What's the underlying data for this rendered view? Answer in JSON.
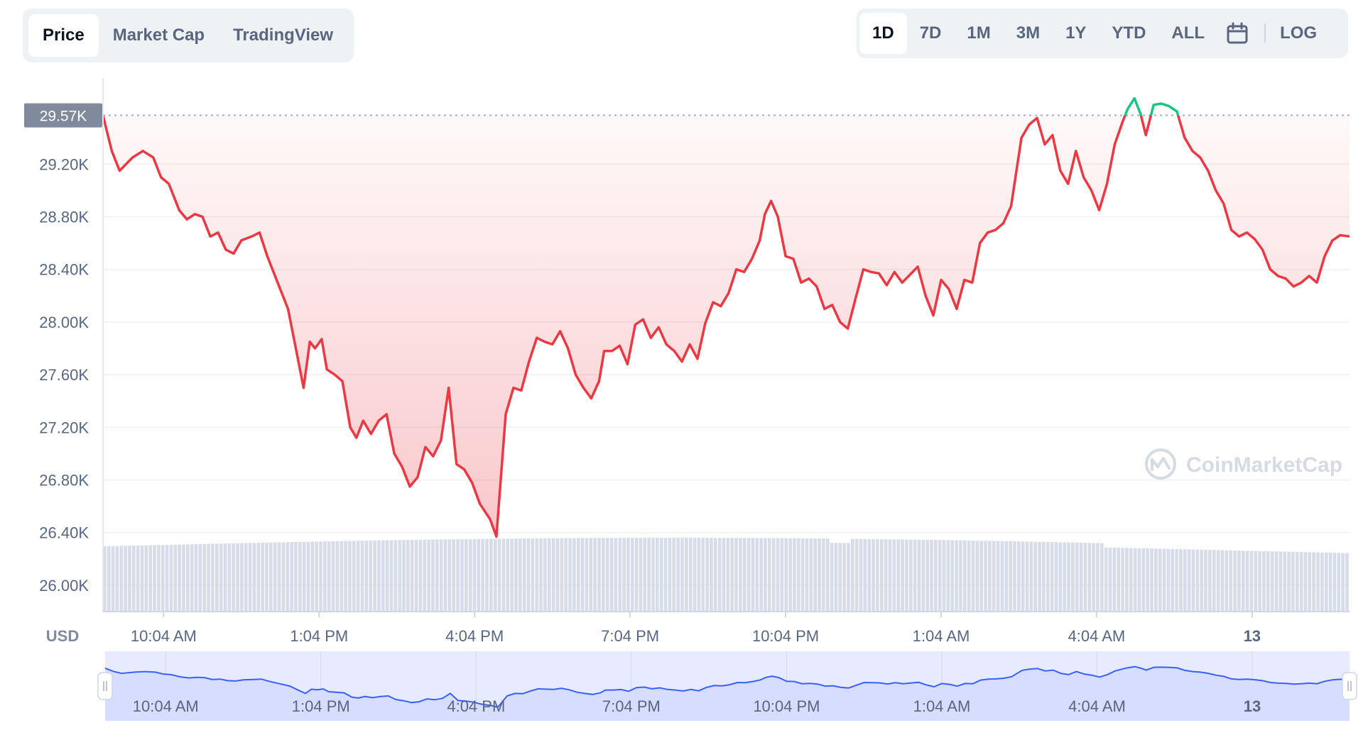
{
  "chart_tabs": [
    {
      "label": "Price",
      "active": true
    },
    {
      "label": "Market Cap",
      "active": false
    },
    {
      "label": "TradingView",
      "active": false
    }
  ],
  "ranges": [
    {
      "label": "1D",
      "active": true
    },
    {
      "label": "7D",
      "active": false
    },
    {
      "label": "1M",
      "active": false
    },
    {
      "label": "3M",
      "active": false
    },
    {
      "label": "1Y",
      "active": false
    },
    {
      "label": "YTD",
      "active": false
    },
    {
      "label": "ALL",
      "active": false
    }
  ],
  "calendar_icon": "calendar-icon",
  "log_label": "LOG",
  "watermark": "CoinMarketCap",
  "currency_label": "USD",
  "colors": {
    "down": "#ea3943",
    "up": "#16c784",
    "volume": "#cfd6e4",
    "navigator": "#3861fb"
  },
  "chart_data": {
    "type": "line",
    "series": [
      {
        "name": "Price"
      }
    ],
    "reference_price": 29570,
    "reference_label": "29.57K",
    "ylim": [
      25800,
      29800
    ],
    "y_ticks": [
      29200,
      28800,
      28400,
      28000,
      27600,
      27200,
      26800,
      26400,
      26000
    ],
    "y_tick_labels": [
      "29.20K",
      "28.80K",
      "28.40K",
      "28.00K",
      "27.60K",
      "27.20K",
      "26.80K",
      "26.40K",
      "26.00K"
    ],
    "x_tick_labels": [
      "10:04 AM",
      "1:04 PM",
      "4:04 PM",
      "7:04 PM",
      "10:04 PM",
      "1:04 AM",
      "4:04 AM",
      "13"
    ],
    "x_tick_hours": [
      1.0,
      4.0,
      7.0,
      10.0,
      13.0,
      16.0,
      19.0,
      22.0
    ],
    "x_range_hours": [
      -0.17,
      23.88
    ],
    "points": [
      [
        -0.17,
        29570
      ],
      [
        0.0,
        29300
      ],
      [
        0.15,
        29150
      ],
      [
        0.4,
        29250
      ],
      [
        0.6,
        29300
      ],
      [
        0.8,
        29250
      ],
      [
        0.95,
        29100
      ],
      [
        1.1,
        29050
      ],
      [
        1.3,
        28850
      ],
      [
        1.45,
        28780
      ],
      [
        1.6,
        28820
      ],
      [
        1.75,
        28800
      ],
      [
        1.9,
        28650
      ],
      [
        2.05,
        28680
      ],
      [
        2.2,
        28550
      ],
      [
        2.35,
        28520
      ],
      [
        2.5,
        28620
      ],
      [
        2.7,
        28650
      ],
      [
        2.85,
        28680
      ],
      [
        3.0,
        28500
      ],
      [
        3.2,
        28300
      ],
      [
        3.4,
        28100
      ],
      [
        3.55,
        27800
      ],
      [
        3.7,
        27500
      ],
      [
        3.82,
        27850
      ],
      [
        3.92,
        27800
      ],
      [
        4.05,
        27870
      ],
      [
        4.15,
        27640
      ],
      [
        4.3,
        27600
      ],
      [
        4.45,
        27550
      ],
      [
        4.6,
        27200
      ],
      [
        4.72,
        27120
      ],
      [
        4.85,
        27250
      ],
      [
        5.0,
        27150
      ],
      [
        5.15,
        27250
      ],
      [
        5.3,
        27300
      ],
      [
        5.45,
        27000
      ],
      [
        5.6,
        26900
      ],
      [
        5.75,
        26750
      ],
      [
        5.9,
        26820
      ],
      [
        6.05,
        27050
      ],
      [
        6.2,
        26980
      ],
      [
        6.35,
        27100
      ],
      [
        6.5,
        27500
      ],
      [
        6.65,
        26920
      ],
      [
        6.8,
        26880
      ],
      [
        6.95,
        26780
      ],
      [
        7.1,
        26620
      ],
      [
        7.3,
        26500
      ],
      [
        7.42,
        26370
      ],
      [
        7.6,
        27300
      ],
      [
        7.75,
        27500
      ],
      [
        7.9,
        27480
      ],
      [
        8.05,
        27700
      ],
      [
        8.2,
        27880
      ],
      [
        8.35,
        27850
      ],
      [
        8.5,
        27830
      ],
      [
        8.65,
        27930
      ],
      [
        8.8,
        27800
      ],
      [
        8.95,
        27600
      ],
      [
        9.1,
        27500
      ],
      [
        9.25,
        27420
      ],
      [
        9.4,
        27550
      ],
      [
        9.5,
        27780
      ],
      [
        9.65,
        27780
      ],
      [
        9.8,
        27820
      ],
      [
        9.95,
        27680
      ],
      [
        10.1,
        27980
      ],
      [
        10.25,
        28020
      ],
      [
        10.4,
        27880
      ],
      [
        10.55,
        27960
      ],
      [
        10.7,
        27830
      ],
      [
        10.85,
        27780
      ],
      [
        11.0,
        27700
      ],
      [
        11.15,
        27830
      ],
      [
        11.3,
        27720
      ],
      [
        11.45,
        27990
      ],
      [
        11.6,
        28150
      ],
      [
        11.75,
        28120
      ],
      [
        11.9,
        28220
      ],
      [
        12.05,
        28400
      ],
      [
        12.2,
        28380
      ],
      [
        12.35,
        28480
      ],
      [
        12.5,
        28620
      ],
      [
        12.6,
        28820
      ],
      [
        12.72,
        28920
      ],
      [
        12.85,
        28800
      ],
      [
        13.0,
        28500
      ],
      [
        13.15,
        28480
      ],
      [
        13.3,
        28300
      ],
      [
        13.45,
        28330
      ],
      [
        13.6,
        28270
      ],
      [
        13.75,
        28100
      ],
      [
        13.9,
        28130
      ],
      [
        14.05,
        28000
      ],
      [
        14.2,
        27950
      ],
      [
        14.35,
        28180
      ],
      [
        14.5,
        28400
      ],
      [
        14.65,
        28380
      ],
      [
        14.8,
        28370
      ],
      [
        14.95,
        28280
      ],
      [
        15.1,
        28380
      ],
      [
        15.25,
        28300
      ],
      [
        15.4,
        28360
      ],
      [
        15.55,
        28420
      ],
      [
        15.7,
        28200
      ],
      [
        15.85,
        28050
      ],
      [
        16.0,
        28320
      ],
      [
        16.15,
        28250
      ],
      [
        16.3,
        28100
      ],
      [
        16.45,
        28320
      ],
      [
        16.6,
        28300
      ],
      [
        16.75,
        28600
      ],
      [
        16.9,
        28680
      ],
      [
        17.05,
        28700
      ],
      [
        17.2,
        28750
      ],
      [
        17.35,
        28880
      ],
      [
        17.55,
        29400
      ],
      [
        17.7,
        29500
      ],
      [
        17.85,
        29550
      ],
      [
        18.0,
        29350
      ],
      [
        18.15,
        29420
      ],
      [
        18.3,
        29150
      ],
      [
        18.45,
        29050
      ],
      [
        18.6,
        29300
      ],
      [
        18.75,
        29100
      ],
      [
        18.9,
        29000
      ],
      [
        19.05,
        28850
      ],
      [
        19.2,
        29050
      ],
      [
        19.35,
        29350
      ],
      [
        19.5,
        29520
      ],
      [
        19.6,
        29620
      ],
      [
        19.73,
        29700
      ],
      [
        19.85,
        29580
      ],
      [
        19.95,
        29420
      ],
      [
        20.1,
        29650
      ],
      [
        20.25,
        29660
      ],
      [
        20.4,
        29640
      ],
      [
        20.55,
        29600
      ],
      [
        20.7,
        29400
      ],
      [
        20.85,
        29300
      ],
      [
        21.0,
        29250
      ],
      [
        21.15,
        29150
      ],
      [
        21.3,
        29000
      ],
      [
        21.45,
        28900
      ],
      [
        21.6,
        28700
      ],
      [
        21.75,
        28650
      ],
      [
        21.9,
        28680
      ],
      [
        22.05,
        28630
      ],
      [
        22.2,
        28550
      ],
      [
        22.35,
        28400
      ],
      [
        22.5,
        28350
      ],
      [
        22.65,
        28330
      ],
      [
        22.8,
        28270
      ],
      [
        22.95,
        28300
      ],
      [
        23.1,
        28350
      ],
      [
        23.25,
        28300
      ],
      [
        23.4,
        28500
      ],
      [
        23.55,
        28620
      ],
      [
        23.7,
        28660
      ],
      [
        23.88,
        28650
      ]
    ]
  },
  "navigator": {
    "x_tick_labels": [
      "10:04 AM",
      "1:04 PM",
      "4:04 PM",
      "7:04 PM",
      "10:04 PM",
      "1:04 AM",
      "4:04 AM",
      "13"
    ]
  }
}
